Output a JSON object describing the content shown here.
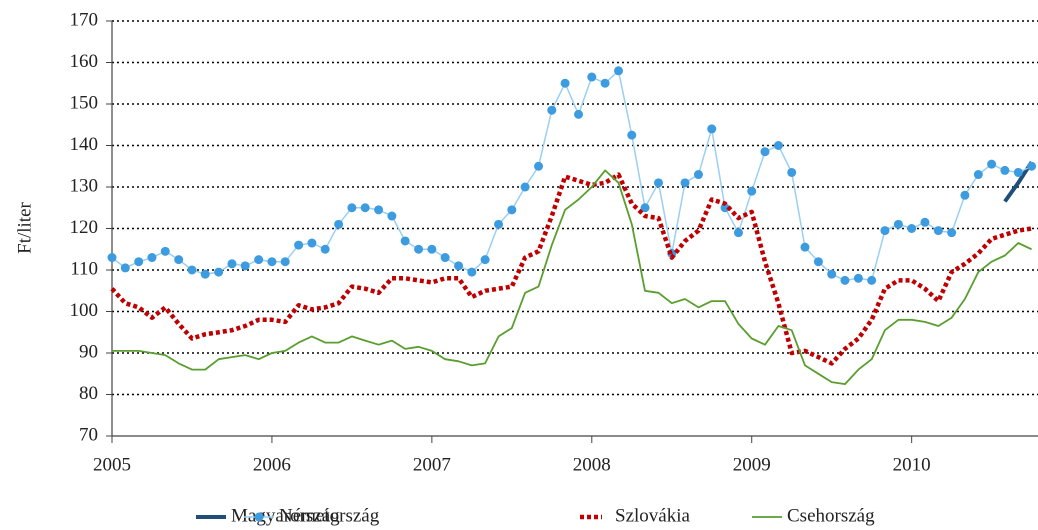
{
  "chart_data": {
    "type": "line",
    "y_label": "Ft/liter",
    "x": [
      2005,
      2005.083,
      2005.167,
      2005.25,
      2005.333,
      2005.417,
      2005.5,
      2005.583,
      2005.667,
      2005.75,
      2005.833,
      2005.917,
      2006,
      2006.083,
      2006.167,
      2006.25,
      2006.333,
      2006.417,
      2006.5,
      2006.583,
      2006.667,
      2006.75,
      2006.833,
      2006.917,
      2007,
      2007.083,
      2007.167,
      2007.25,
      2007.333,
      2007.417,
      2007.5,
      2007.583,
      2007.667,
      2007.75,
      2007.833,
      2007.917,
      2008,
      2008.083,
      2008.167,
      2008.25,
      2008.333,
      2008.417,
      2008.5,
      2008.583,
      2008.667,
      2008.75,
      2008.833,
      2008.917,
      2009,
      2009.083,
      2009.167,
      2009.25,
      2009.333,
      2009.417,
      2009.5,
      2009.583,
      2009.667,
      2009.75,
      2009.833,
      2009.917,
      2010,
      2010.083,
      2010.167,
      2010.25,
      2010.333,
      2010.417,
      2010.5,
      2010.583,
      2010.667,
      2010.75
    ],
    "xlim": [
      2005,
      2010.79
    ],
    "xticks": [
      2005,
      2006,
      2007,
      2008,
      2009,
      2010
    ],
    "ylim": [
      70,
      170
    ],
    "yticks": [
      70,
      80,
      90,
      100,
      110,
      120,
      130,
      140,
      150,
      160,
      170
    ],
    "grid": true,
    "legend": "bottom",
    "series": [
      {
        "name": "Magyarország",
        "color": "#1f4e79",
        "width": 4,
        "dash": "solid",
        "marker": "none",
        "values": [
          null,
          null,
          null,
          null,
          null,
          null,
          null,
          null,
          null,
          null,
          null,
          null,
          null,
          null,
          null,
          null,
          null,
          null,
          null,
          null,
          null,
          null,
          null,
          null,
          null,
          null,
          null,
          null,
          null,
          null,
          null,
          null,
          null,
          null,
          null,
          null,
          null,
          null,
          null,
          null,
          null,
          null,
          null,
          null,
          null,
          null,
          null,
          null,
          null,
          null,
          null,
          null,
          null,
          null,
          null,
          null,
          null,
          null,
          null,
          null,
          null,
          null,
          null,
          null,
          null,
          null,
          null,
          126.5,
          131,
          136
        ]
      },
      {
        "name": "Németország",
        "color": "#3d9be0",
        "line_color": "#9bcff3",
        "width": 1.5,
        "dash": "solid",
        "marker": "circle",
        "values": [
          113,
          110.5,
          112,
          113,
          114.5,
          112.5,
          110,
          109,
          109.5,
          111.5,
          111,
          112.5,
          112,
          112,
          116,
          116.5,
          115,
          121,
          125,
          125,
          124.5,
          123,
          117,
          115,
          115,
          113,
          111,
          109.5,
          112.5,
          121,
          124.5,
          130,
          135,
          148.5,
          155,
          147.5,
          156.5,
          155,
          158,
          142.5,
          125,
          131,
          114,
          131,
          133,
          144,
          125,
          119,
          129,
          138.5,
          140,
          133.5,
          115.5,
          112,
          109,
          107.5,
          108,
          107.5,
          119.5,
          121,
          120,
          121.5,
          119.5,
          119,
          128,
          133,
          135.5,
          134,
          133.5,
          135
        ]
      },
      {
        "name": "Szlovákia",
        "color": "#c00000",
        "width": 4.5,
        "dash": "dotted",
        "marker": "none",
        "values": [
          105.5,
          102,
          101,
          98.5,
          101,
          97,
          93.5,
          94.5,
          95,
          95.5,
          96.5,
          98,
          98,
          97.5,
          101.5,
          100.5,
          101,
          102,
          106,
          105.5,
          104.5,
          108,
          108,
          107.5,
          107,
          108,
          108,
          103.5,
          105,
          105.5,
          106,
          113,
          114.5,
          123,
          132.5,
          131.5,
          130.5,
          131,
          133,
          126,
          123,
          122.5,
          113,
          117,
          119.5,
          127,
          126,
          122.5,
          124,
          112,
          102,
          90,
          90.5,
          89,
          87.5,
          91,
          93.5,
          98,
          105.5,
          107.5,
          107.5,
          105.5,
          102.5,
          109.5,
          111.5,
          114,
          117.5,
          118.5,
          119.5,
          120
        ]
      },
      {
        "name": "Csehország",
        "color": "#5a9e2f",
        "width": 1.8,
        "dash": "solid",
        "marker": "none",
        "values": [
          90.5,
          90.5,
          90.5,
          90,
          89.5,
          87.5,
          86,
          86,
          88.5,
          89,
          89.5,
          88.5,
          90,
          90.5,
          92.5,
          94,
          92.5,
          92.5,
          94,
          93,
          92,
          93,
          91,
          91.5,
          90.5,
          88.5,
          88,
          87,
          87.5,
          94,
          96,
          104.5,
          106,
          116,
          124.5,
          127,
          130,
          134,
          131,
          121,
          105,
          104.5,
          102,
          103,
          101,
          102.5,
          102.5,
          97,
          93.5,
          92,
          96.5,
          95.5,
          87,
          85,
          83,
          82.5,
          86,
          88.5,
          95.5,
          98,
          98,
          97.5,
          96.5,
          98.5,
          103,
          109.5,
          112,
          113.5,
          116.5,
          115
        ]
      }
    ]
  }
}
